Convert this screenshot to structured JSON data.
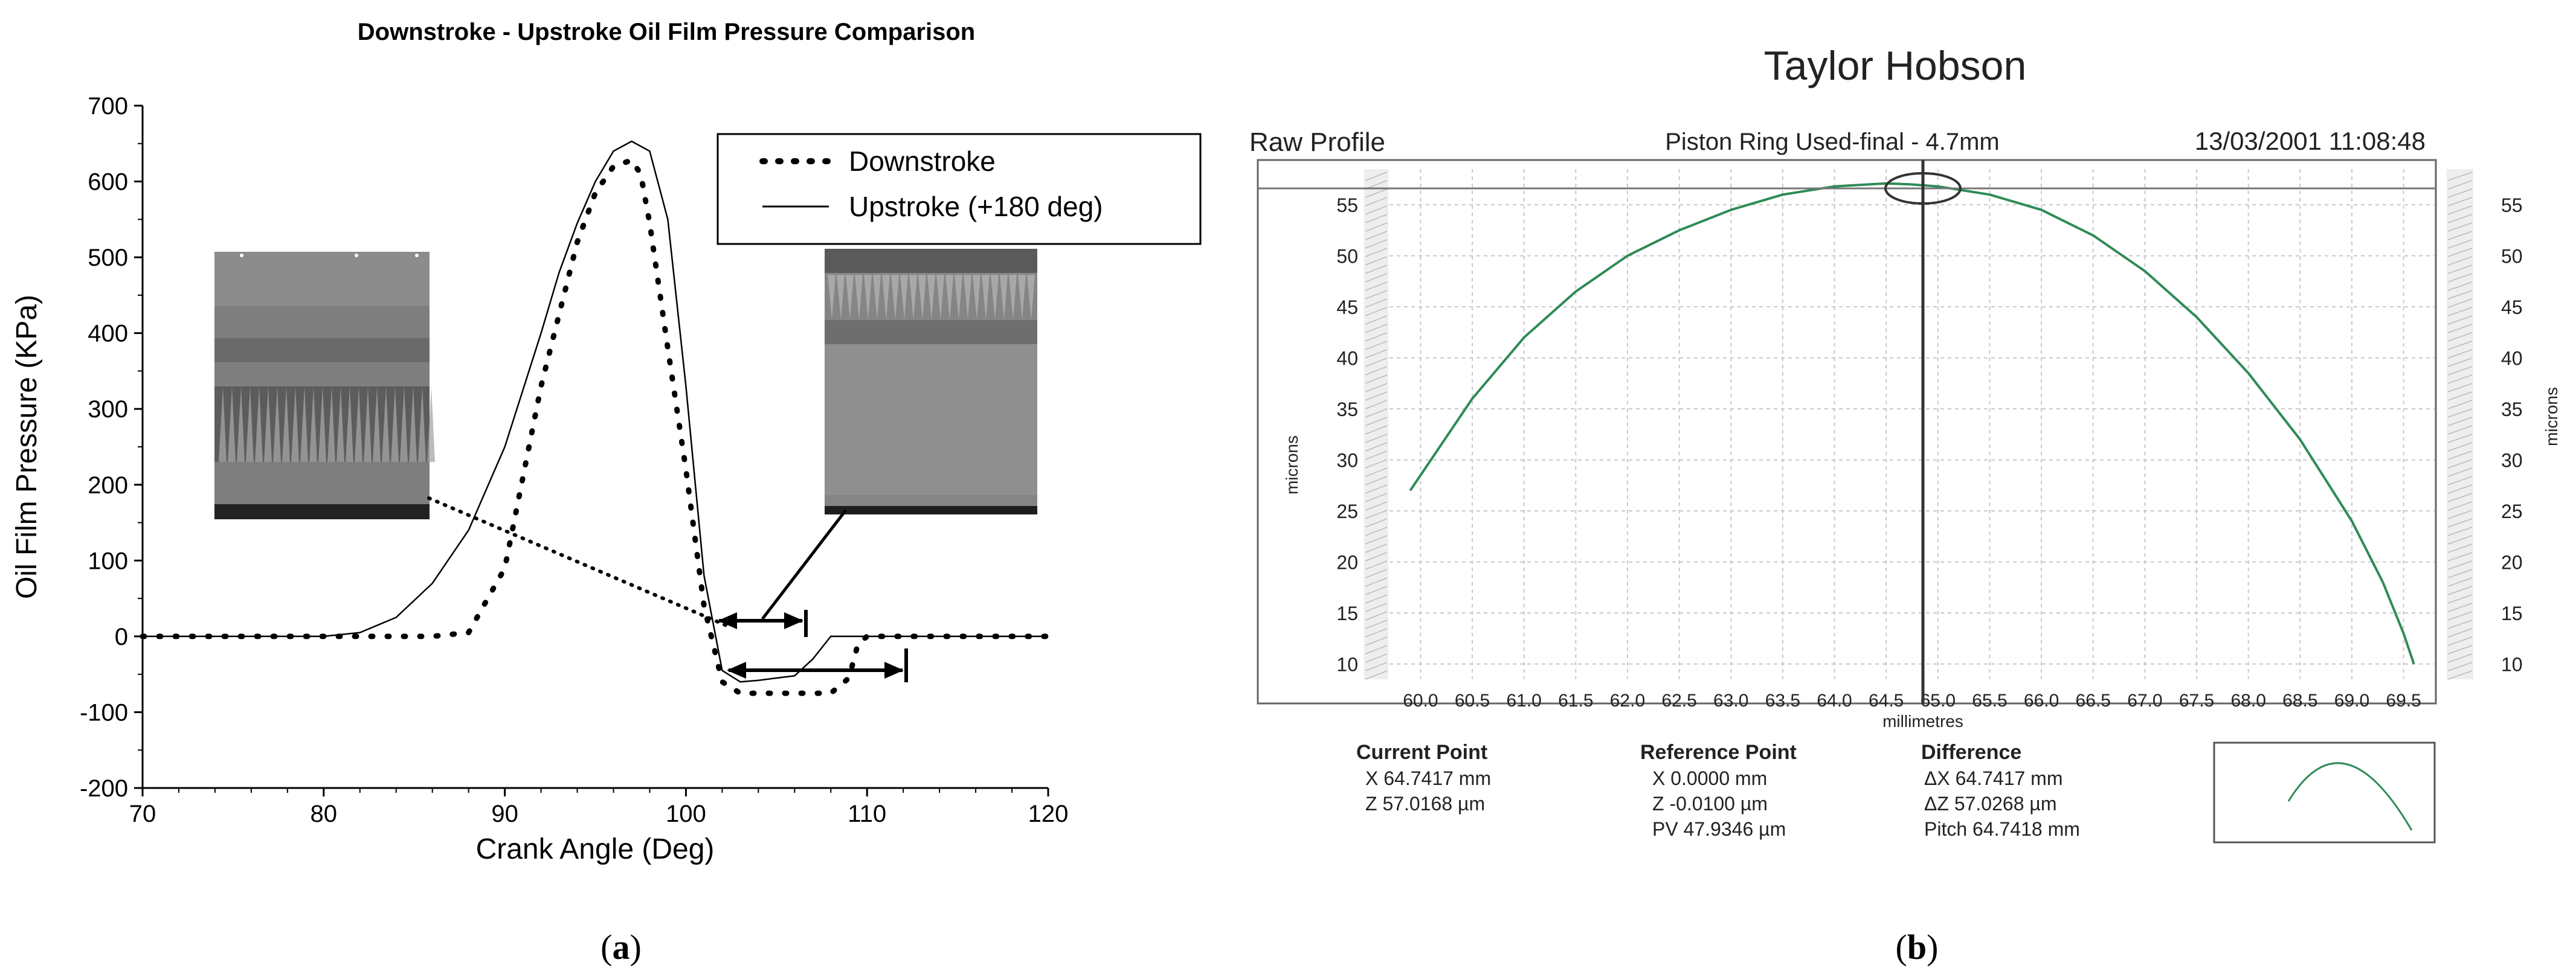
{
  "panel_a": {
    "label_a": "(",
    "label_b": "a",
    "label_c": ")",
    "photo_left_name": "cavitation-photo-left",
    "photo_right_name": "cavitation-photo-right"
  },
  "panel_b": {
    "label_a": "(",
    "label_b": "b",
    "label_c": ")",
    "brand": "Taylor Hobson",
    "mode": "Raw Profile",
    "measurement": "Piston Ring Used-final - 4.7mm",
    "timestamp": "13/03/2001 11:08:48",
    "readouts": {
      "current": {
        "title": "Current Point",
        "x": "X  64.7417 mm",
        "z": "Z  57.0168 µm"
      },
      "reference": {
        "title": "Reference Point",
        "x": "X  0.0000 mm",
        "z": "Z  -0.0100 µm",
        "pv": "PV 47.9346 µm"
      },
      "difference": {
        "title": "Difference",
        "dx": "ΔX  64.7417 mm",
        "dz": "ΔZ  57.0268 µm",
        "pitch": "Pitch 64.7418 mm"
      }
    },
    "colors": {
      "profile": "#2e8b57",
      "frame": "#555555"
    }
  },
  "chart_data": [
    {
      "type": "line",
      "title": "Downstroke - Upstroke Oil Film Pressure Comparison",
      "xlabel": "Crank Angle (Deg)",
      "ylabel": "Oil Film Pressure (KPa)",
      "xlim": [
        70,
        120
      ],
      "ylim": [
        -200,
        700
      ],
      "xticks": [
        "70",
        "80",
        "90",
        "100",
        "110",
        "120"
      ],
      "yticks": [
        "-200",
        "-100",
        "0",
        "100",
        "200",
        "300",
        "400",
        "500",
        "600",
        "700"
      ],
      "legend_position": "top-right",
      "grid": false,
      "series": [
        {
          "name": "Downstroke",
          "style": "dotted",
          "x": [
            70,
            80,
            86,
            88,
            90,
            92,
            94,
            95,
            96,
            97,
            97.5,
            98,
            99,
            100,
            101,
            102,
            103,
            104,
            106,
            108,
            109,
            109.5,
            110,
            112,
            120
          ],
          "y": [
            0,
            0,
            0,
            5,
            90,
            330,
            520,
            585,
            620,
            628,
            610,
            545,
            380,
            220,
            40,
            -60,
            -75,
            -75,
            -75,
            -75,
            -55,
            -10,
            0,
            0,
            0
          ]
        },
        {
          "name": "Upstroke (+180 deg)",
          "style": "solid",
          "x": [
            70,
            80,
            82,
            84,
            86,
            88,
            90,
            92,
            93,
            94,
            95,
            96,
            97,
            98,
            99,
            100,
            101,
            102,
            103,
            104,
            105,
            106,
            107,
            108,
            120
          ],
          "y": [
            0,
            0,
            5,
            25,
            70,
            140,
            250,
            400,
            480,
            545,
            600,
            640,
            653,
            640,
            550,
            330,
            80,
            -45,
            -60,
            -58,
            -55,
            -52,
            -30,
            0,
            0
          ]
        }
      ]
    },
    {
      "type": "line",
      "title": "",
      "xlabel": "millimetres",
      "ylabel": "microns",
      "xlim": [
        59.7,
        69.8
      ],
      "ylim": [
        8.5,
        58.5
      ],
      "xticks": [
        "60.0",
        "60.5",
        "61.0",
        "61.5",
        "62.0",
        "62.5",
        "63.0",
        "63.5",
        "64.0",
        "64.5",
        "65.0",
        "65.5",
        "66.0",
        "66.5",
        "67.0",
        "67.5",
        "68.0",
        "68.5",
        "69.0",
        "69.5"
      ],
      "yticks": [
        "10",
        "15",
        "20",
        "25",
        "30",
        "35",
        "40",
        "45",
        "50",
        "55"
      ],
      "grid": true,
      "series": [
        {
          "style": "solid",
          "x": [
            59.9,
            60.5,
            61.0,
            61.5,
            62.0,
            62.5,
            63.0,
            63.5,
            64.0,
            64.5,
            64.74,
            65.0,
            65.5,
            66.0,
            66.5,
            67.0,
            67.5,
            68.0,
            68.5,
            69.0,
            69.3,
            69.5,
            69.6
          ],
          "y": [
            27,
            36,
            42,
            46.5,
            50,
            52.5,
            54.5,
            56,
            56.8,
            57.1,
            57.0,
            56.8,
            56,
            54.5,
            52,
            48.5,
            44,
            38.5,
            32,
            24,
            18,
            13,
            10
          ]
        }
      ]
    }
  ]
}
